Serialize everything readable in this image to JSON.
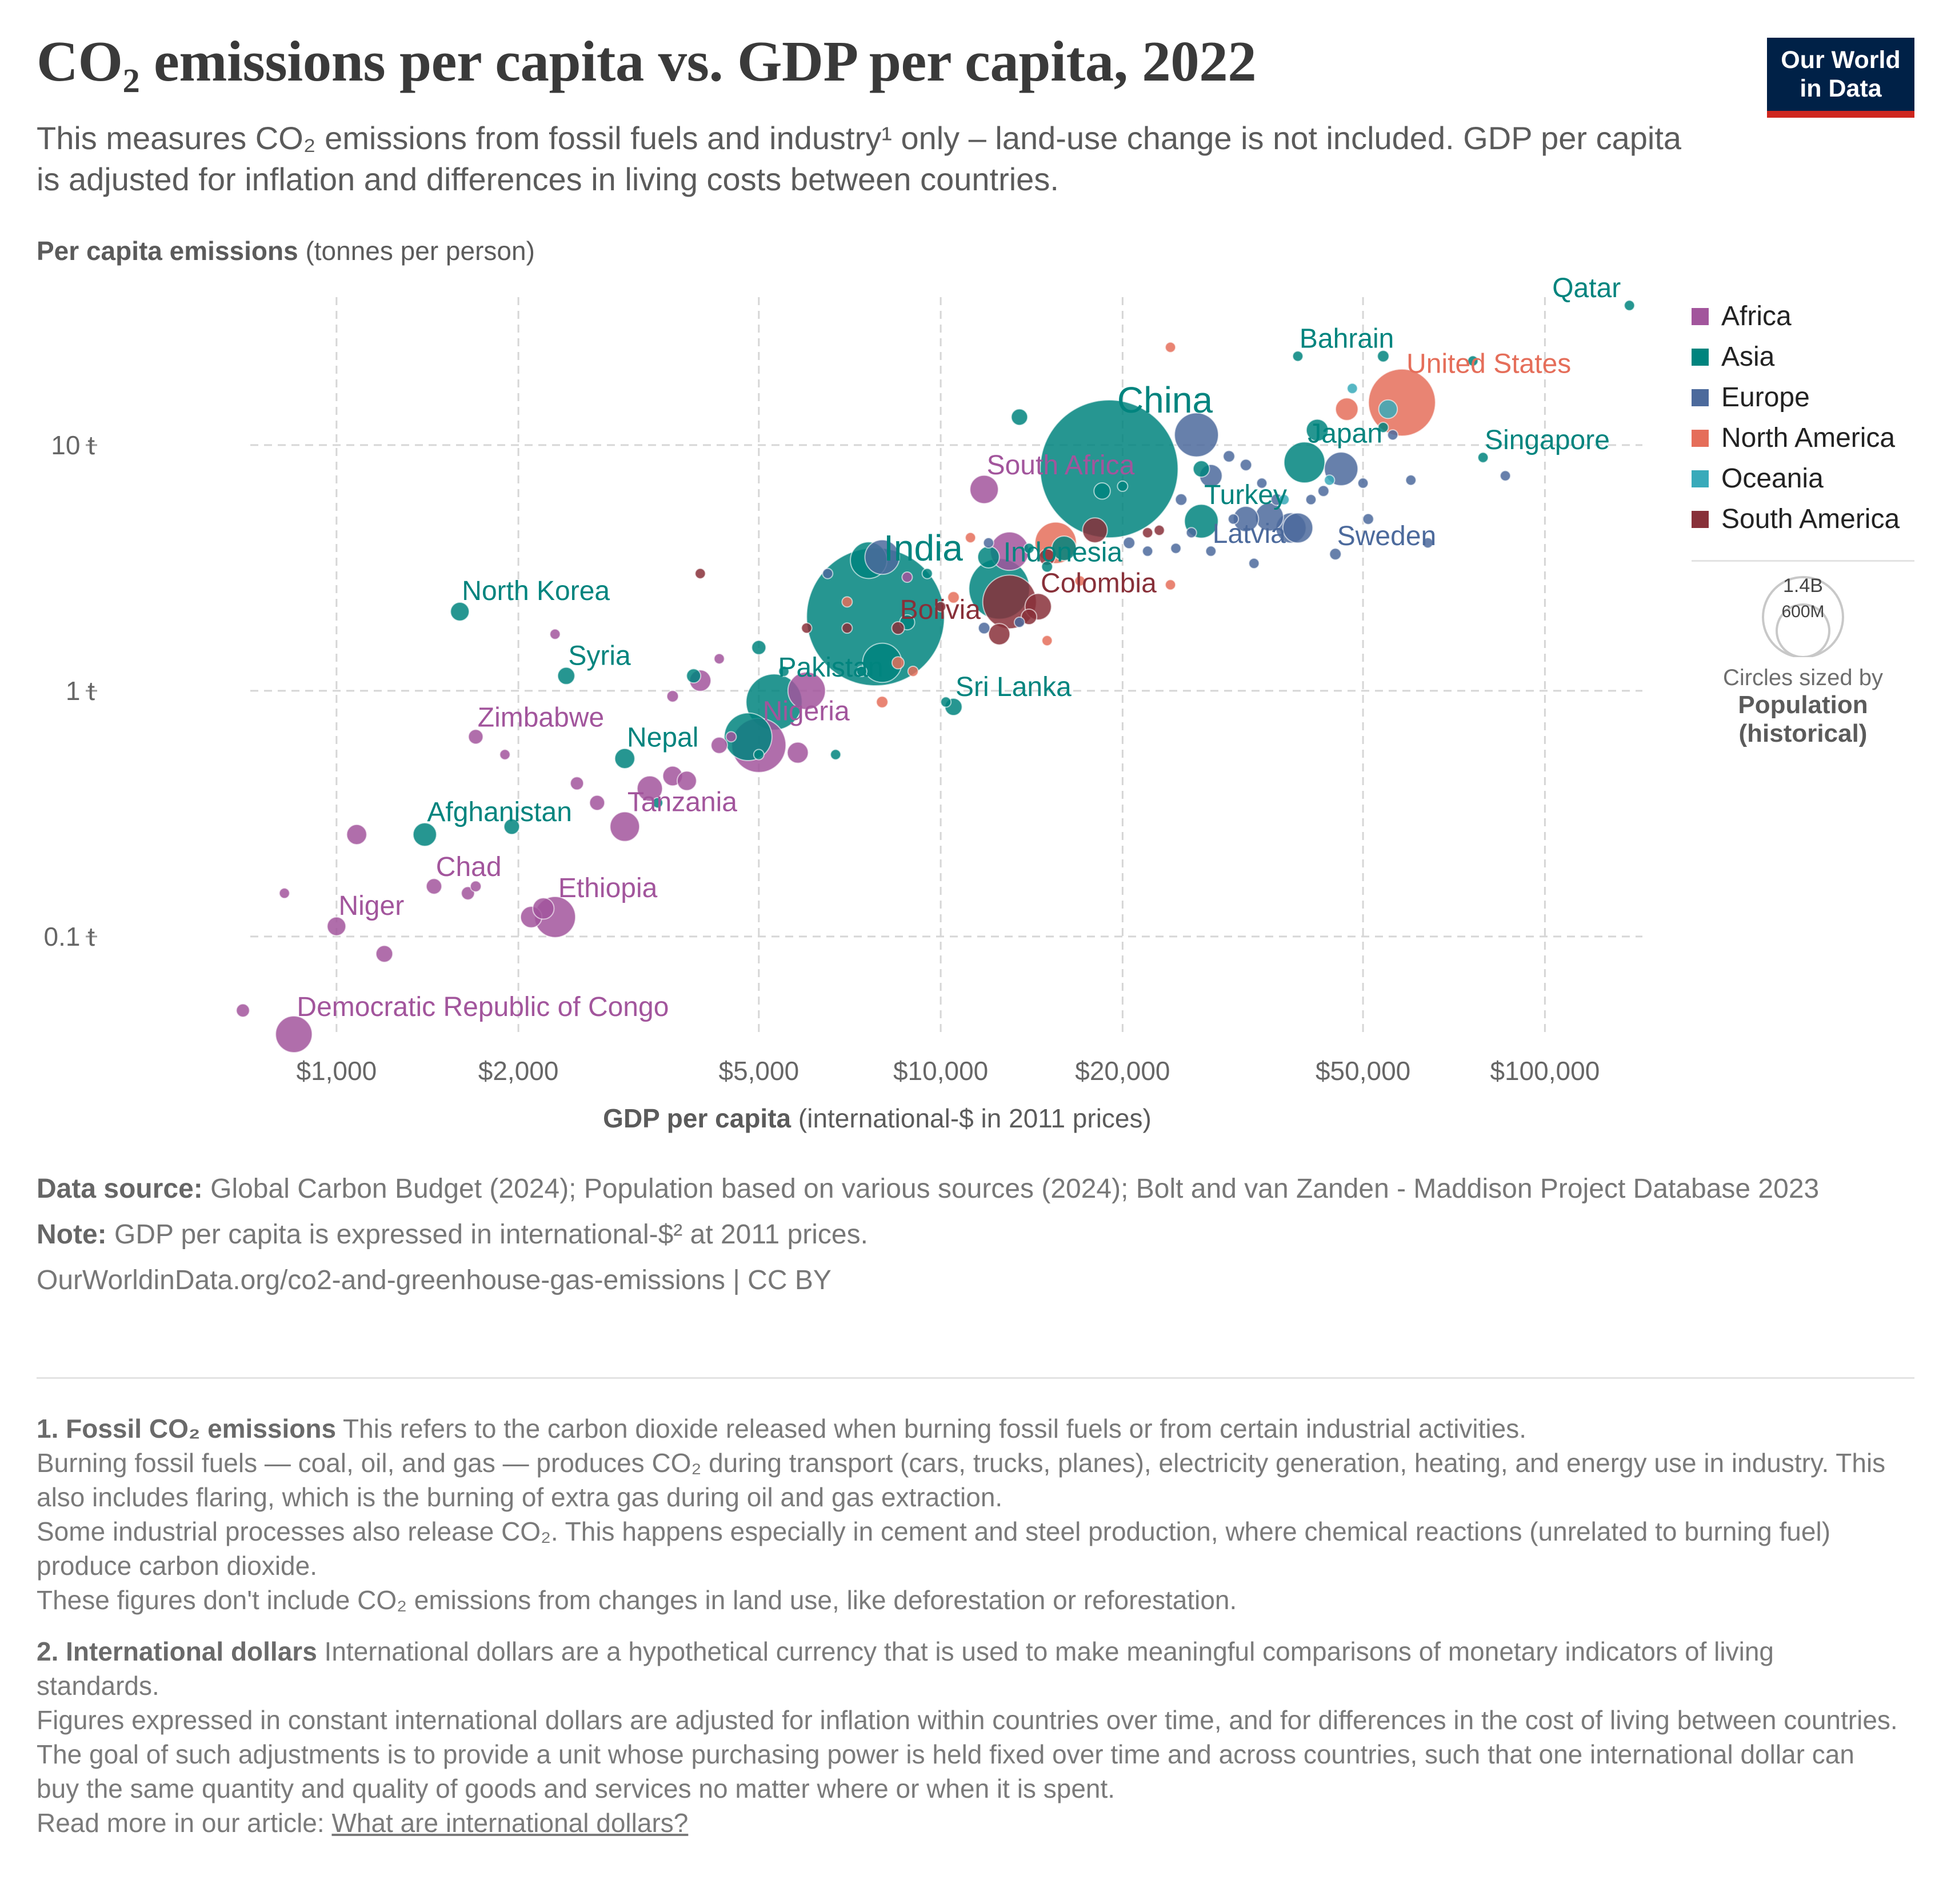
{
  "header": {
    "title": "CO₂ emissions per capita vs. GDP per capita, 2022",
    "subtitle": "This measures CO₂ emissions from fossil fuels and industry¹ only – land-use change is not included. GDP per capita is adjusted for inflation and differences in living costs between countries.",
    "logo_line1": "Our World",
    "logo_line2": "in Data"
  },
  "axes": {
    "y_label_bold": "Per capita emissions",
    "y_label_rest": " (tonnes per person)",
    "x_label_bold": "GDP per capita",
    "x_label_rest": " (international-$ in 2011 prices)"
  },
  "legend": {
    "items": [
      {
        "label": "Africa",
        "color": "#a2559c"
      },
      {
        "label": "Asia",
        "color": "#00847e"
      },
      {
        "label": "Europe",
        "color": "#4c6a9c"
      },
      {
        "label": "North America",
        "color": "#e56e5a"
      },
      {
        "label": "Oceania",
        "color": "#38aaba"
      },
      {
        "label": "South America",
        "color": "#883039"
      }
    ],
    "size_values": [
      "1.4B",
      "600M"
    ],
    "size_caption": "Circles sized by",
    "size_variable": "Population",
    "size_variable2": "(historical)"
  },
  "chart_data": {
    "type": "scatter",
    "x_scale": "log",
    "y_scale": "log",
    "xlim": [
      720,
      145000
    ],
    "ylim": [
      0.04,
      40
    ],
    "x_ticks": [
      {
        "value": 1000,
        "label": "$1,000"
      },
      {
        "value": 2000,
        "label": "$2,000"
      },
      {
        "value": 5000,
        "label": "$5,000"
      },
      {
        "value": 10000,
        "label": "$10,000"
      },
      {
        "value": 20000,
        "label": "$20,000"
      },
      {
        "value": 50000,
        "label": "$50,000"
      },
      {
        "value": 100000,
        "label": "$100,000"
      }
    ],
    "y_ticks": [
      {
        "value": 0.1,
        "label": "0.1 t"
      },
      {
        "value": 1,
        "label": "1 t"
      },
      {
        "value": 10,
        "label": "10 t"
      }
    ],
    "grid": true,
    "legend_position": "right",
    "points": [
      {
        "x": 19000,
        "y": 8.0,
        "pop": 1420,
        "region": "Asia",
        "label": "China"
      },
      {
        "x": 7800,
        "y": 2.0,
        "pop": 1420,
        "region": "Asia",
        "label": "India"
      },
      {
        "x": 58000,
        "y": 14.9,
        "pop": 335,
        "region": "North America",
        "label": "United States"
      },
      {
        "x": 12500,
        "y": 2.6,
        "pop": 275,
        "region": "Asia",
        "label": "Indonesia"
      },
      {
        "x": 5300,
        "y": 0.9,
        "pop": 235,
        "region": "Asia",
        "label": "Pakistan"
      },
      {
        "x": 5000,
        "y": 0.6,
        "pop": 220,
        "region": "Africa",
        "label": "Nigeria"
      },
      {
        "x": 13000,
        "y": 2.3,
        "pop": 215,
        "region": "South America"
      },
      {
        "x": 4800,
        "y": 0.65,
        "pop": 170,
        "region": "Asia"
      },
      {
        "x": 40000,
        "y": 8.5,
        "pop": 125,
        "region": "Asia",
        "label": "Japan"
      },
      {
        "x": 2300,
        "y": 0.12,
        "pop": 125,
        "region": "Africa",
        "label": "Ethiopia"
      },
      {
        "x": 8000,
        "y": 1.3,
        "pop": 115,
        "region": "Asia"
      },
      {
        "x": 46000,
        "y": 8.0,
        "pop": 84,
        "region": "Europe"
      },
      {
        "x": 13000,
        "y": 3.7,
        "pop": 110,
        "region": "Africa"
      },
      {
        "x": 27000,
        "y": 4.9,
        "pop": 85,
        "region": "Asia",
        "label": "Turkey"
      },
      {
        "x": 14500,
        "y": 2.2,
        "pop": 52,
        "region": "South America",
        "label": "Colombia"
      },
      {
        "x": 4000,
        "y": 1.1,
        "pop": 34,
        "region": "Africa"
      },
      {
        "x": 8500,
        "y": 1.8,
        "pop": 12,
        "region": "South America",
        "label": "Bolivia"
      },
      {
        "x": 11800,
        "y": 6.6,
        "pop": 60,
        "region": "Africa",
        "label": "South Africa"
      },
      {
        "x": 3000,
        "y": 0.28,
        "pop": 65,
        "region": "Africa",
        "label": "Tanzania"
      },
      {
        "x": 850,
        "y": 0.04,
        "pop": 100,
        "region": "Africa",
        "label": "Democratic Republic of Congo"
      },
      {
        "x": 1400,
        "y": 0.26,
        "pop": 41,
        "region": "Asia",
        "label": "Afghanistan"
      },
      {
        "x": 1000,
        "y": 0.11,
        "pop": 26,
        "region": "Africa",
        "label": "Niger"
      },
      {
        "x": 1450,
        "y": 0.16,
        "pop": 18,
        "region": "Africa",
        "label": "Chad"
      },
      {
        "x": 1700,
        "y": 0.65,
        "pop": 16,
        "region": "Africa",
        "label": "Zimbabwe"
      },
      {
        "x": 3000,
        "y": 0.53,
        "pop": 30,
        "region": "Asia",
        "label": "Nepal"
      },
      {
        "x": 2400,
        "y": 1.15,
        "pop": 22,
        "region": "Asia",
        "label": "Syria"
      },
      {
        "x": 1600,
        "y": 2.1,
        "pop": 26,
        "region": "Asia",
        "label": "North Korea"
      },
      {
        "x": 10500,
        "y": 0.86,
        "pop": 22,
        "region": "Asia",
        "label": "Sri Lanka"
      },
      {
        "x": 28000,
        "y": 3.7,
        "pop": 2,
        "region": "Europe",
        "label": "Latvia"
      },
      {
        "x": 45000,
        "y": 3.6,
        "pop": 10,
        "region": "Europe",
        "label": "Sweden"
      },
      {
        "x": 79000,
        "y": 8.9,
        "pop": 6,
        "region": "Asia",
        "label": "Singapore"
      },
      {
        "x": 39000,
        "y": 23.0,
        "pop": 1.5,
        "region": "Asia",
        "label": "Bahrain"
      },
      {
        "x": 138000,
        "y": 37.0,
        "pop": 2.7,
        "region": "Asia",
        "label": "Qatar"
      },
      {
        "x": 54000,
        "y": 23.0,
        "pop": 10,
        "region": "Asia"
      },
      {
        "x": 55000,
        "y": 14.0,
        "pop": 26,
        "region": "Oceania"
      },
      {
        "x": 47000,
        "y": 14.0,
        "pop": 38,
        "region": "North America"
      },
      {
        "x": 24000,
        "y": 25.0,
        "pop": 1.5,
        "region": "North America"
      },
      {
        "x": 42000,
        "y": 11.5,
        "pop": 36,
        "region": "Asia"
      },
      {
        "x": 54000,
        "y": 11.8,
        "pop": 4.5,
        "region": "Asia"
      },
      {
        "x": 39000,
        "y": 4.6,
        "pop": 67,
        "region": "Europe"
      },
      {
        "x": 38000,
        "y": 4.6,
        "pop": 68,
        "region": "Europe"
      },
      {
        "x": 35000,
        "y": 5.1,
        "pop": 59,
        "region": "Europe"
      },
      {
        "x": 32000,
        "y": 5.0,
        "pop": 48,
        "region": "Europe"
      },
      {
        "x": 26500,
        "y": 11.0,
        "pop": 144,
        "region": "Europe"
      },
      {
        "x": 28000,
        "y": 7.5,
        "pop": 38,
        "region": "Europe"
      },
      {
        "x": 15500,
        "y": 4.0,
        "pop": 128,
        "region": "North America"
      },
      {
        "x": 13500,
        "y": 13.0,
        "pop": 20,
        "region": "Asia"
      },
      {
        "x": 18000,
        "y": 4.5,
        "pop": 46,
        "region": "South America"
      },
      {
        "x": 15000,
        "y": 3.5,
        "pop": 20,
        "region": "South America"
      },
      {
        "x": 12500,
        "y": 1.7,
        "pop": 34,
        "region": "South America"
      },
      {
        "x": 14000,
        "y": 2.0,
        "pop": 18,
        "region": "South America"
      },
      {
        "x": 8000,
        "y": 3.5,
        "pop": 89,
        "region": "Europe"
      },
      {
        "x": 7600,
        "y": 3.4,
        "pop": 100,
        "region": "Asia"
      },
      {
        "x": 8500,
        "y": 1.3,
        "pop": 11,
        "region": "North America"
      },
      {
        "x": 7000,
        "y": 2.3,
        "pop": 2.8,
        "region": "North America"
      },
      {
        "x": 6500,
        "y": 3.0,
        "pop": 2.4,
        "region": "Europe"
      },
      {
        "x": 4000,
        "y": 3.0,
        "pop": 6,
        "region": "South America"
      },
      {
        "x": 6000,
        "y": 1.0,
        "pop": 105,
        "region": "Africa"
      },
      {
        "x": 8000,
        "y": 0.9,
        "pop": 10,
        "region": "North America"
      },
      {
        "x": 2700,
        "y": 0.35,
        "pop": 17,
        "region": "Africa"
      },
      {
        "x": 3300,
        "y": 0.4,
        "pop": 48,
        "region": "Africa"
      },
      {
        "x": 3600,
        "y": 0.45,
        "pop": 29,
        "region": "Africa"
      },
      {
        "x": 4300,
        "y": 0.6,
        "pop": 20,
        "region": "Africa"
      },
      {
        "x": 5800,
        "y": 0.56,
        "pop": 33,
        "region": "Africa"
      },
      {
        "x": 3800,
        "y": 0.43,
        "pop": 28,
        "region": "Africa"
      },
      {
        "x": 3600,
        "y": 0.95,
        "pop": 10,
        "region": "Africa"
      },
      {
        "x": 4300,
        "y": 1.35,
        "pop": 6,
        "region": "Africa"
      },
      {
        "x": 2300,
        "y": 1.7,
        "pop": 4,
        "region": "Africa"
      },
      {
        "x": 2500,
        "y": 0.42,
        "pop": 13,
        "region": "Africa"
      },
      {
        "x": 1900,
        "y": 0.55,
        "pop": 6,
        "region": "Africa"
      },
      {
        "x": 1080,
        "y": 0.26,
        "pop": 30,
        "region": "Africa"
      },
      {
        "x": 820,
        "y": 0.15,
        "pop": 2.6,
        "region": "Africa"
      },
      {
        "x": 700,
        "y": 0.05,
        "pop": 13,
        "region": "Africa"
      },
      {
        "x": 1200,
        "y": 0.085,
        "pop": 21,
        "region": "Africa"
      },
      {
        "x": 2100,
        "y": 0.12,
        "pop": 34,
        "region": "Africa"
      },
      {
        "x": 2200,
        "y": 0.13,
        "pop": 34,
        "region": "Africa"
      },
      {
        "x": 1700,
        "y": 0.16,
        "pop": 8.8,
        "region": "Africa"
      },
      {
        "x": 1650,
        "y": 0.15,
        "pop": 13,
        "region": "Africa"
      },
      {
        "x": 3900,
        "y": 1.15,
        "pop": 15,
        "region": "Asia"
      },
      {
        "x": 1950,
        "y": 0.28,
        "pop": 18,
        "region": "Asia"
      },
      {
        "x": 5000,
        "y": 1.5,
        "pop": 15,
        "region": "Asia"
      },
      {
        "x": 8800,
        "y": 1.9,
        "pop": 17,
        "region": "Asia"
      },
      {
        "x": 12000,
        "y": 3.5,
        "pop": 35,
        "region": "Asia"
      },
      {
        "x": 16000,
        "y": 3.8,
        "pop": 45,
        "region": "Asia"
      },
      {
        "x": 27000,
        "y": 8.0,
        "pop": 20,
        "region": "Asia"
      },
      {
        "x": 18500,
        "y": 6.5,
        "pop": 20,
        "region": "Asia"
      },
      {
        "x": 4500,
        "y": 0.65,
        "pop": 5,
        "region": "Africa"
      },
      {
        "x": 3400,
        "y": 0.35,
        "pop": 8,
        "region": "Asia"
      },
      {
        "x": 5000,
        "y": 0.55,
        "pop": 4,
        "region": "Asia"
      },
      {
        "x": 30000,
        "y": 9.0,
        "pop": 10,
        "region": "Europe"
      },
      {
        "x": 32000,
        "y": 8.3,
        "pop": 9.9,
        "region": "Europe"
      },
      {
        "x": 36000,
        "y": 6.0,
        "pop": 10,
        "region": "Europe"
      },
      {
        "x": 33000,
        "y": 3.3,
        "pop": 5,
        "region": "Europe"
      },
      {
        "x": 43000,
        "y": 6.5,
        "pop": 9,
        "region": "Europe"
      },
      {
        "x": 50000,
        "y": 7.0,
        "pop": 5.4,
        "region": "Europe"
      },
      {
        "x": 60000,
        "y": 7.2,
        "pop": 5,
        "region": "Europe"
      },
      {
        "x": 86000,
        "y": 7.5,
        "pop": 5.5,
        "region": "Europe"
      },
      {
        "x": 51000,
        "y": 5.0,
        "pop": 8.7,
        "region": "Europe"
      },
      {
        "x": 25000,
        "y": 6.0,
        "pop": 10,
        "region": "Europe"
      },
      {
        "x": 20500,
        "y": 4.0,
        "pop": 10,
        "region": "Europe"
      },
      {
        "x": 22000,
        "y": 3.7,
        "pop": 6,
        "region": "Europe"
      },
      {
        "x": 12000,
        "y": 4.0,
        "pop": 3,
        "region": "Europe"
      },
      {
        "x": 11800,
        "y": 1.8,
        "pop": 10,
        "region": "Europe"
      },
      {
        "x": 13500,
        "y": 1.9,
        "pop": 2,
        "region": "Europe"
      },
      {
        "x": 26000,
        "y": 4.4,
        "pop": 6,
        "region": "Europe"
      },
      {
        "x": 24500,
        "y": 3.8,
        "pop": 3,
        "region": "Europe"
      },
      {
        "x": 30500,
        "y": 5.0,
        "pop": 2.1,
        "region": "Europe"
      },
      {
        "x": 64000,
        "y": 4.0,
        "pop": 4.5,
        "region": "Europe"
      },
      {
        "x": 23000,
        "y": 4.5,
        "pop": 1.3,
        "region": "South America"
      },
      {
        "x": 11200,
        "y": 4.2,
        "pop": 3.4,
        "region": "North America"
      },
      {
        "x": 22000,
        "y": 4.4,
        "pop": 7,
        "region": "South America"
      },
      {
        "x": 10500,
        "y": 2.4,
        "pop": 10,
        "region": "North America"
      },
      {
        "x": 17000,
        "y": 2.8,
        "pop": 3.5,
        "region": "North America"
      },
      {
        "x": 15000,
        "y": 1.6,
        "pop": 4,
        "region": "North America"
      },
      {
        "x": 10000,
        "y": 2.2,
        "pop": 6,
        "region": "South America"
      },
      {
        "x": 7000,
        "y": 1.8,
        "pop": 3,
        "region": "South America"
      },
      {
        "x": 9500,
        "y": 3.0,
        "pop": 3,
        "region": "Asia"
      },
      {
        "x": 24000,
        "y": 2.7,
        "pop": 1.3,
        "region": "North America"
      },
      {
        "x": 20000,
        "y": 6.8,
        "pop": 5,
        "region": "Asia"
      },
      {
        "x": 44000,
        "y": 7.2,
        "pop": 5,
        "region": "Oceania"
      },
      {
        "x": 37000,
        "y": 6.0,
        "pop": 1,
        "region": "Oceania"
      },
      {
        "x": 76000,
        "y": 22.0,
        "pop": 4.3,
        "region": "Asia"
      },
      {
        "x": 48000,
        "y": 17.0,
        "pop": 4.5,
        "region": "Oceania"
      },
      {
        "x": 56000,
        "y": 11.0,
        "pop": 3,
        "region": "Europe"
      },
      {
        "x": 34000,
        "y": 7.0,
        "pop": 3,
        "region": "Europe"
      },
      {
        "x": 41000,
        "y": 6.0,
        "pop": 2,
        "region": "Europe"
      },
      {
        "x": 9000,
        "y": 1.2,
        "pop": 6,
        "region": "North America"
      },
      {
        "x": 6700,
        "y": 0.55,
        "pop": 2,
        "region": "Asia"
      },
      {
        "x": 10200,
        "y": 0.9,
        "pop": 5,
        "region": "Asia"
      },
      {
        "x": 15000,
        "y": 3.2,
        "pop": 9,
        "region": "Asia"
      },
      {
        "x": 6000,
        "y": 1.8,
        "pop": 8,
        "region": "South America"
      },
      {
        "x": 5500,
        "y": 1.2,
        "pop": 7,
        "region": "Asia"
      },
      {
        "x": 7400,
        "y": 1.2,
        "pop": 8,
        "region": "Asia"
      },
      {
        "x": 8800,
        "y": 2.9,
        "pop": 8,
        "region": "Africa"
      },
      {
        "x": 14000,
        "y": 3.8,
        "pop": 6,
        "region": "Asia"
      }
    ]
  },
  "sources": {
    "data_source_label": "Data source:",
    "data_source_text": " Global Carbon Budget (2024); Population based on various sources (2024); Bolt and van Zanden - Maddison Project Database 2023",
    "note_label": "Note:",
    "note_text": " GDP per capita is expressed in international-$² at 2011 prices.",
    "url_text": "OurWorldinData.org/co2-and-greenhouse-gas-emissions  | CC BY"
  },
  "footnotes": {
    "fn1_title": "1. Fossil CO₂ emissions",
    "fn1_lead": " This refers to the carbon dioxide released when burning fossil fuels or from certain industrial activities.",
    "fn1_p2": "Burning fossil fuels — coal, oil, and gas — produces CO₂ during transport (cars, trucks, planes), electricity generation, heating, and energy use in industry. This also includes flaring, which is the burning of extra gas during oil and gas extraction.",
    "fn1_p3": "Some industrial processes also release CO₂. This happens especially in cement and steel production, where chemical reactions (unrelated to burning fuel) produce carbon dioxide.",
    "fn1_p4": "These figures don't include CO₂ emissions from changes in land use, like deforestation or reforestation.",
    "fn2_title": "2. International dollars",
    "fn2_lead": " International dollars are a hypothetical currency that is used to make meaningful comparisons of monetary indicators of living standards.",
    "fn2_p2": "Figures expressed in constant international dollars are adjusted for inflation within countries over time, and for differences in the cost of living between countries.",
    "fn2_p3": "The goal of such adjustments is to provide a unit whose purchasing power is held fixed over time and across countries, such that one international dollar can buy the same quantity and quality of goods and services no matter where or when it is spent.",
    "fn2_p4_lead": "Read more in our article: ",
    "fn2_link": "What are international dollars?"
  }
}
